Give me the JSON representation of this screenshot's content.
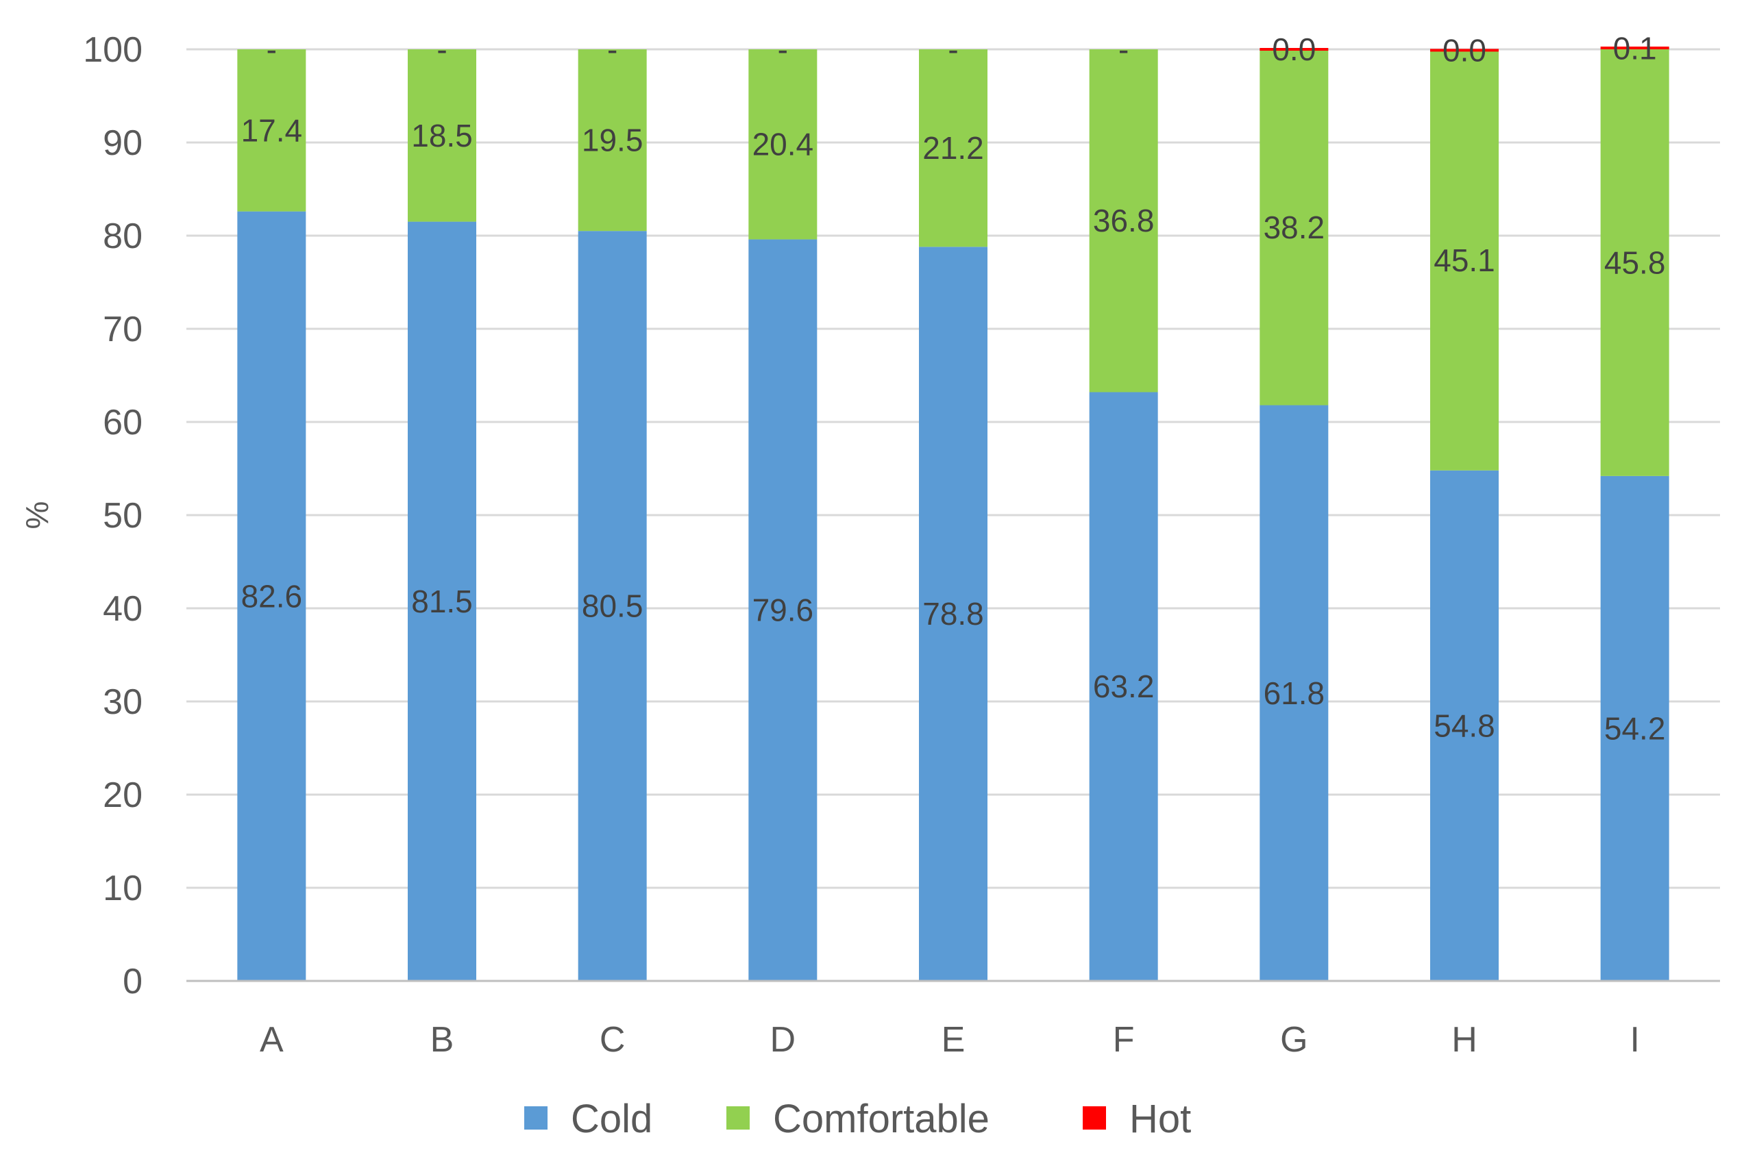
{
  "chart_data": {
    "type": "bar",
    "stacked": true,
    "categories": [
      "A",
      "B",
      "C",
      "D",
      "E",
      "F",
      "G",
      "H",
      "I"
    ],
    "series": [
      {
        "name": "Cold",
        "color": "#5b9bd5",
        "values": [
          82.6,
          81.5,
          80.5,
          79.6,
          78.8,
          63.2,
          61.8,
          54.8,
          54.2
        ],
        "labels": [
          "82.6",
          "81.5",
          "80.5",
          "79.6",
          "78.8",
          "63.2",
          "61.8",
          "54.8",
          "54.2"
        ]
      },
      {
        "name": "Comfortable",
        "color": "#92d050",
        "values": [
          17.4,
          18.5,
          19.5,
          20.4,
          21.2,
          36.8,
          38.2,
          45.1,
          45.8
        ],
        "labels": [
          "17.4",
          "18.5",
          "19.5",
          "20.4",
          "21.2",
          "36.8",
          "38.2",
          "45.1",
          "45.8"
        ]
      },
      {
        "name": "Hot",
        "color": "#ff0000",
        "values": [
          0,
          0,
          0,
          0,
          0,
          0,
          0.0,
          0.0,
          0.1
        ],
        "labels": [
          "-",
          "-",
          "-",
          "-",
          "-",
          "-",
          "0.0",
          "0.0",
          "0.1"
        ]
      }
    ],
    "ylabel": "%",
    "xlabel": "",
    "ylim": [
      0,
      100
    ],
    "yticks": [
      "0",
      "10",
      "20",
      "30",
      "40",
      "50",
      "60",
      "70",
      "80",
      "90",
      "100"
    ],
    "grid": true,
    "legend_position": "bottom"
  }
}
